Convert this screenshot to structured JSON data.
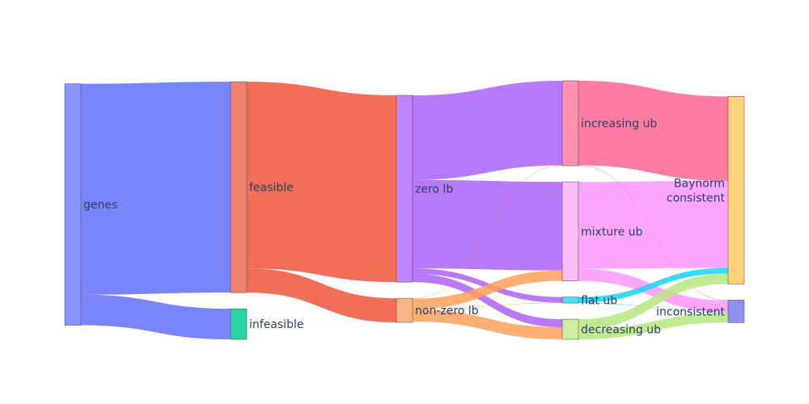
{
  "chart_data": {
    "type": "sankey",
    "nodes": [
      {
        "id": "genes",
        "label": "genes",
        "color": "#8b93ff"
      },
      {
        "id": "feasible",
        "label": "feasible",
        "color": "#f08070"
      },
      {
        "id": "infeasible",
        "label": "infeasible",
        "color": "#2fd2a5"
      },
      {
        "id": "zero_lb",
        "label": "zero lb",
        "color": "#c184ff"
      },
      {
        "id": "nonzero_lb",
        "label": "non-zero lb",
        "color": "#ffb583"
      },
      {
        "id": "mixture_ub",
        "label": "mixture ub",
        "color": "#ffbdf9"
      },
      {
        "id": "increasing_ub",
        "label": "increasing ub",
        "color": "#ff90ae"
      },
      {
        "id": "flat_ub",
        "label": "flat ub",
        "color": "#4fe1f3"
      },
      {
        "id": "decreasing_ub",
        "label": "decreasing ub",
        "color": "#cceea0"
      },
      {
        "id": "baynorm_consistent",
        "label": "Baynorm\nconsistent",
        "color": "#ffd47a"
      },
      {
        "id": "inconsistent",
        "label": "inconsistent",
        "color": "#8e93f2"
      }
    ],
    "links": [
      {
        "source": "genes",
        "target": "feasible",
        "value": 262,
        "color": "#636efa"
      },
      {
        "source": "genes",
        "target": "infeasible",
        "value": 38,
        "color": "#636efa"
      },
      {
        "source": "feasible",
        "target": "zero_lb",
        "value": 232,
        "color": "#ef553b"
      },
      {
        "source": "feasible",
        "target": "nonzero_lb",
        "value": 30,
        "color": "#ef553b"
      },
      {
        "source": "zero_lb",
        "target": "mixture_ub",
        "value": 110,
        "color": "#ab63fa"
      },
      {
        "source": "zero_lb",
        "target": "increasing_ub",
        "value": 105,
        "color": "#ab63fa"
      },
      {
        "source": "zero_lb",
        "target": "flat_ub",
        "value": 7,
        "color": "#ab63fa"
      },
      {
        "source": "zero_lb",
        "target": "decreasing_ub",
        "value": 10,
        "color": "#ab63fa"
      },
      {
        "source": "nonzero_lb",
        "target": "mixture_ub",
        "value": 13,
        "color": "#ffa15a"
      },
      {
        "source": "nonzero_lb",
        "target": "increasing_ub",
        "value": 0.5,
        "color": "#ffa15a"
      },
      {
        "source": "nonzero_lb",
        "target": "flat_ub",
        "value": 0.5,
        "color": "#ffa15a"
      },
      {
        "source": "nonzero_lb",
        "target": "decreasing_ub",
        "value": 15,
        "color": "#ffa15a"
      },
      {
        "source": "mixture_ub",
        "target": "baynorm_consistent",
        "value": 108,
        "color": "#ff97ff"
      },
      {
        "source": "mixture_ub",
        "target": "inconsistent",
        "value": 15,
        "color": "#ff97ff"
      },
      {
        "source": "increasing_ub",
        "target": "baynorm_consistent",
        "value": 105,
        "color": "#ff6692"
      },
      {
        "source": "increasing_ub",
        "target": "inconsistent",
        "value": 0.5,
        "color": "#ff6692"
      },
      {
        "source": "flat_ub",
        "target": "baynorm_consistent",
        "value": 7,
        "color": "#19d3f3"
      },
      {
        "source": "flat_ub",
        "target": "inconsistent",
        "value": 0.5,
        "color": "#19d3f3"
      },
      {
        "source": "decreasing_ub",
        "target": "baynorm_consistent",
        "value": 13,
        "color": "#b6e880"
      },
      {
        "source": "decreasing_ub",
        "target": "inconsistent",
        "value": 12,
        "color": "#b6e880"
      }
    ]
  }
}
